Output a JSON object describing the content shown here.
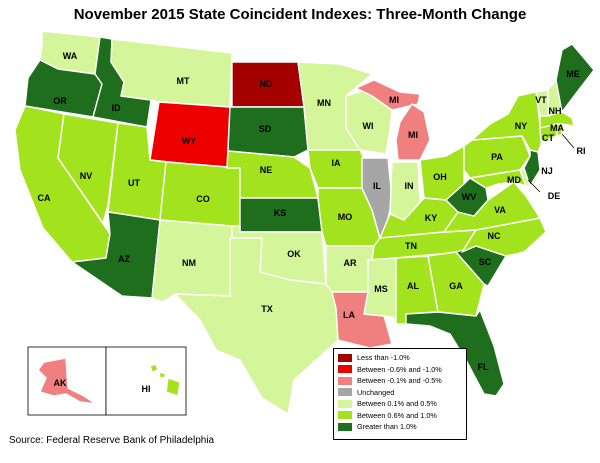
{
  "title": "November 2015 State Coincident Indexes: Three-Month Change",
  "source": "Source: Federal Reserve Bank of Philadelphia",
  "legend": [
    {
      "label": "Less than -1.0%",
      "color": "#a50000"
    },
    {
      "label": "Between -0.6% and -1.0%",
      "color": "#ee0000"
    },
    {
      "label": "Between -0.1% and -0.5%",
      "color": "#f08080"
    },
    {
      "label": "Unchanged",
      "color": "#a6a6a6"
    },
    {
      "label": "Between 0.1% and 0.5%",
      "color": "#d4f59a"
    },
    {
      "label": "Between 0.6% and 1.0%",
      "color": "#a3e31e"
    },
    {
      "label": "Greater than 1.0%",
      "color": "#1e6e1e"
    }
  ],
  "state_labels": {
    "WA": "WA",
    "OR": "OR",
    "CA": "CA",
    "NV": "NV",
    "ID": "ID",
    "MT": "MT",
    "WY": "WY",
    "UT": "UT",
    "AZ": "AZ",
    "CO": "CO",
    "NM": "NM",
    "ND": "ND",
    "SD": "SD",
    "NE": "NE",
    "KS": "KS",
    "OK": "OK",
    "TX": "TX",
    "MN": "MN",
    "IA": "IA",
    "MO": "MO",
    "AR": "AR",
    "LA": "LA",
    "WI": "WI",
    "IL": "IL",
    "MI_UP": "MI",
    "MI_LP": "MI",
    "IN": "IN",
    "OH": "OH",
    "KY": "KY",
    "TN": "TN",
    "MS": "MS",
    "AL": "AL",
    "GA": "GA",
    "FL": "FL",
    "SC": "SC",
    "NC": "NC",
    "VA": "VA",
    "WV": "WV",
    "PA": "PA",
    "NY": "NY",
    "VT": "VT",
    "NH": "NH",
    "ME": "ME",
    "MA": "MA",
    "CT": "CT",
    "RI": "RI",
    "NJ": "NJ",
    "DE": "DE",
    "MD": "MD",
    "AK": "AK",
    "HI": "HI"
  },
  "state_category": {
    "WA": 4,
    "OR": 6,
    "CA": 5,
    "NV": 5,
    "ID": 6,
    "MT": 4,
    "WY": 1,
    "UT": 5,
    "AZ": 6,
    "CO": 5,
    "NM": 4,
    "ND": 0,
    "SD": 6,
    "NE": 5,
    "KS": 6,
    "OK": 4,
    "TX": 4,
    "MN": 4,
    "IA": 5,
    "MO": 5,
    "AR": 4,
    "LA": 2,
    "WI": 4,
    "IL": 3,
    "MI": 2,
    "IN": 4,
    "OH": 5,
    "KY": 5,
    "TN": 5,
    "MS": 4,
    "AL": 5,
    "GA": 5,
    "FL": 6,
    "SC": 6,
    "NC": 5,
    "VA": 5,
    "WV": 6,
    "PA": 5,
    "NY": 5,
    "VT": 4,
    "NH": 4,
    "ME": 6,
    "MA": 5,
    "CT": 5,
    "RI": 5,
    "NJ": 6,
    "DE": 4,
    "MD": 5,
    "AK": 2,
    "HI": 5
  }
}
